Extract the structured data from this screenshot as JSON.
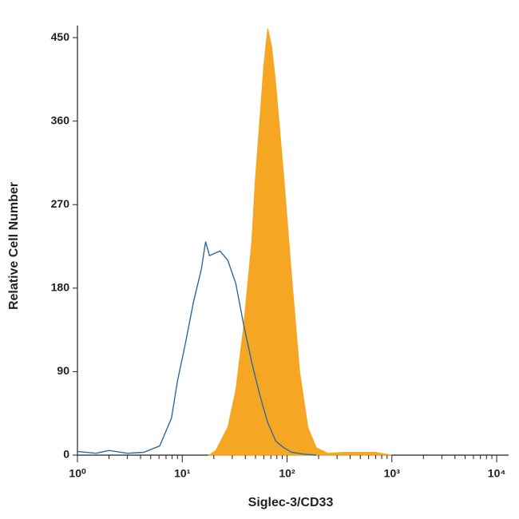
{
  "chart_data": {
    "type": "histogram-overlay",
    "xlabel": "Siglec-3/CD33",
    "ylabel": "Relative Cell Number",
    "log_x": true,
    "xlim": [
      1,
      13000
    ],
    "xticks": [
      {
        "value": 1,
        "label": "10⁰"
      },
      {
        "value": 10,
        "label": "10¹"
      },
      {
        "value": 100,
        "label": "10²"
      },
      {
        "value": 1000,
        "label": "10³"
      },
      {
        "value": 10000,
        "label": "10⁴"
      }
    ],
    "xminorticks": [
      2,
      3,
      4,
      5,
      6,
      7,
      8,
      9,
      20,
      30,
      40,
      50,
      60,
      70,
      80,
      90,
      200,
      300,
      400,
      500,
      600,
      700,
      800,
      900,
      2000,
      3000,
      4000,
      5000,
      6000,
      7000,
      8000,
      9000
    ],
    "ylim": [
      0,
      463
    ],
    "yticks": [
      0,
      90,
      180,
      270,
      360,
      450
    ],
    "series": [
      {
        "color": "#f5a623",
        "fill": true,
        "x": [
          18,
          20.9,
          27.2,
          32.4,
          38.6,
          46,
          50,
          54.9,
          60,
          65.4,
          71.4,
          78,
          93,
          111,
          132,
          158,
          190,
          245,
          350,
          700,
          1000
        ],
        "values": [
          0,
          5,
          30,
          70,
          140,
          230,
          300,
          360,
          420,
          460,
          440,
          400,
          300,
          190,
          90,
          30,
          8,
          2,
          3,
          3,
          0
        ]
      },
      {
        "color": "#2f6a9e",
        "fill": false,
        "x": [
          1,
          1.5,
          2,
          3,
          4.3,
          6.1,
          7.9,
          9,
          10.7,
          12.8,
          15.2,
          16.7,
          18.2,
          22.9,
          27.2,
          32.4,
          38.6,
          46,
          54.9,
          65.4,
          78,
          93,
          111,
          145,
          190
        ],
        "values": [
          4,
          2,
          5,
          2,
          3,
          10,
          40,
          80,
          120,
          165,
          200,
          230,
          215,
          220,
          210,
          185,
          140,
          100,
          65,
          35,
          15,
          8,
          3,
          1,
          0
        ]
      }
    ]
  }
}
